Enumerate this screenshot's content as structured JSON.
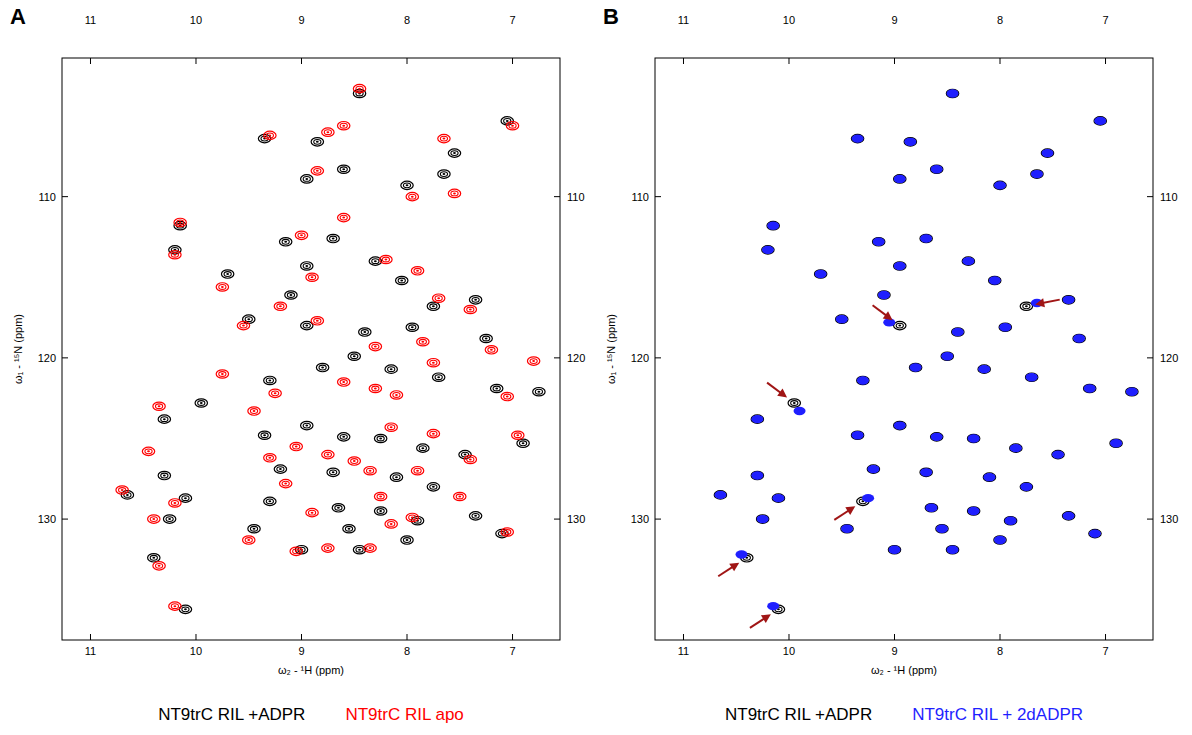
{
  "chart_data": [
    {
      "type": "scatter",
      "panel_label": "A",
      "x_label": "ω₂ - ¹H (ppm)",
      "y_label": "ω₁ - ¹⁵N (ppm)",
      "xlim": [
        11.27,
        6.55
      ],
      "ylim": [
        101.4,
        137.5
      ],
      "xticks": [
        11,
        10,
        9,
        8,
        7
      ],
      "yticks": [
        110,
        120,
        130
      ],
      "legend": "bottom",
      "grid": false,
      "series": [
        {
          "name": "NT9trC RIL +ADPR",
          "color": "#000000",
          "marker": "contour",
          "x": [
            9.35,
            8.85,
            8.45,
            7.55,
            7.05,
            8.95,
            8.6,
            8.0,
            7.65,
            10.15,
            10.2,
            9.15,
            8.7,
            8.3,
            9.7,
            8.95,
            8.05,
            7.75,
            7.35,
            9.1,
            9.5,
            8.95,
            8.4,
            7.95,
            7.25,
            9.95,
            9.3,
            8.8,
            8.5,
            8.15,
            7.7,
            7.15,
            6.75,
            10.3,
            9.35,
            8.95,
            8.6,
            8.25,
            7.85,
            7.45,
            6.9,
            10.3,
            9.2,
            8.7,
            8.1,
            7.75,
            10.65,
            10.1,
            9.3,
            8.65,
            8.25,
            7.9,
            7.35,
            10.25,
            9.45,
            8.55,
            8.0,
            10.4,
            9.0,
            8.45,
            10.1,
            7.1
          ],
          "y": [
            106.4,
            106.6,
            103.6,
            107.3,
            105.3,
            108.9,
            108.3,
            109.3,
            108.6,
            111.8,
            113.3,
            112.8,
            112.6,
            114.0,
            114.8,
            114.3,
            115.2,
            116.8,
            116.4,
            116.1,
            117.6,
            118.0,
            118.4,
            118.1,
            118.8,
            122.8,
            121.4,
            120.6,
            119.9,
            120.7,
            121.2,
            121.9,
            122.1,
            123.8,
            124.8,
            124.2,
            124.9,
            125.0,
            125.6,
            126.0,
            125.3,
            127.3,
            126.9,
            127.1,
            127.4,
            128.0,
            128.5,
            128.7,
            128.9,
            129.3,
            129.5,
            130.1,
            129.8,
            130.0,
            130.6,
            130.6,
            131.3,
            132.4,
            131.9,
            131.9,
            135.6,
            130.9
          ]
        },
        {
          "name": "NT9trC RIL apo",
          "color": "#ff0000",
          "marker": "contour",
          "x": [
            9.3,
            8.75,
            8.45,
            7.65,
            7.0,
            8.85,
            8.6,
            7.95,
            7.55,
            10.15,
            10.2,
            9.0,
            8.6,
            8.2,
            9.75,
            8.9,
            7.9,
            7.7,
            7.4,
            9.2,
            9.55,
            8.85,
            8.3,
            7.85,
            7.2,
            9.75,
            9.25,
            8.6,
            8.3,
            8.1,
            7.75,
            7.05,
            6.8,
            10.35,
            9.45,
            9.05,
            8.5,
            8.15,
            7.75,
            7.4,
            6.95,
            10.45,
            9.3,
            8.75,
            8.35,
            7.9,
            10.7,
            10.2,
            9.15,
            8.9,
            8.25,
            7.95,
            7.5,
            10.4,
            9.5,
            8.75,
            8.15,
            10.35,
            9.05,
            8.35,
            10.2,
            7.05
          ],
          "y": [
            106.2,
            106.0,
            103.3,
            106.4,
            105.6,
            108.4,
            105.6,
            110.0,
            109.8,
            111.6,
            113.6,
            112.4,
            111.3,
            113.9,
            115.6,
            115.0,
            114.6,
            116.3,
            117.0,
            116.8,
            118.0,
            117.7,
            119.3,
            119.0,
            119.5,
            121.0,
            122.2,
            121.5,
            121.9,
            122.3,
            120.3,
            122.4,
            120.2,
            123.0,
            123.3,
            125.5,
            126.4,
            124.3,
            124.7,
            126.3,
            124.8,
            125.8,
            126.2,
            126.0,
            127.0,
            127.0,
            128.2,
            129.0,
            127.8,
            129.6,
            128.6,
            129.9,
            128.6,
            130.0,
            131.3,
            131.8,
            130.3,
            132.9,
            132.0,
            131.8,
            135.4,
            130.8
          ]
        }
      ]
    },
    {
      "type": "scatter",
      "panel_label": "B",
      "x_label": "ω₂ - ¹H (ppm)",
      "y_label": "ω₁ - ¹⁵N (ppm)",
      "xlim": [
        11.27,
        6.55
      ],
      "ylim": [
        101.4,
        137.5
      ],
      "xticks": [
        11,
        10,
        9,
        8,
        7
      ],
      "yticks": [
        110,
        120,
        130
      ],
      "legend": "bottom",
      "grid": false,
      "series": [
        {
          "name": "NT9trC RIL +ADPR",
          "color": "#000000",
          "marker": "contour",
          "x": [
            9.35,
            8.85,
            8.45,
            7.55,
            7.05,
            8.95,
            8.6,
            8.0,
            7.65,
            10.15,
            10.2,
            9.15,
            8.7,
            8.3,
            9.7,
            8.95,
            8.05,
            7.75,
            7.35,
            9.1,
            9.5,
            8.95,
            8.4,
            7.95,
            7.25,
            9.95,
            9.3,
            8.8,
            8.5,
            8.15,
            7.7,
            7.15,
            6.75,
            10.3,
            9.35,
            8.95,
            8.6,
            8.25,
            7.85,
            7.45,
            6.9,
            10.3,
            9.2,
            8.7,
            8.1,
            7.75,
            10.65,
            10.1,
            9.3,
            8.65,
            8.25,
            7.9,
            7.35,
            10.25,
            9.45,
            8.55,
            8.0,
            10.4,
            9.0,
            8.45,
            10.1,
            7.1
          ],
          "y": [
            106.4,
            106.6,
            103.6,
            107.3,
            105.3,
            108.9,
            108.3,
            109.3,
            108.6,
            111.8,
            113.3,
            112.8,
            112.6,
            114.0,
            114.8,
            114.3,
            115.2,
            116.8,
            116.4,
            116.1,
            117.6,
            118.0,
            118.4,
            118.1,
            118.8,
            122.8,
            121.4,
            120.6,
            119.9,
            120.7,
            121.2,
            121.9,
            122.1,
            123.8,
            124.8,
            124.2,
            124.9,
            125.0,
            125.6,
            126.0,
            125.3,
            127.3,
            126.9,
            127.1,
            127.4,
            128.0,
            128.5,
            128.7,
            128.9,
            129.3,
            129.5,
            130.1,
            129.8,
            130.0,
            130.6,
            130.6,
            131.3,
            132.4,
            131.9,
            131.9,
            135.6,
            130.9
          ]
        },
        {
          "name": "NT9trC RIL + 2dADPR",
          "color": "#1f1fff",
          "marker": "filled",
          "x": [
            9.35,
            8.85,
            8.45,
            7.55,
            7.05,
            8.95,
            8.6,
            8.0,
            7.65,
            10.15,
            10.2,
            9.15,
            8.7,
            8.3,
            9.7,
            8.95,
            8.05,
            7.65,
            7.35,
            9.1,
            9.5,
            9.05,
            8.4,
            7.95,
            7.25,
            9.9,
            9.3,
            8.8,
            8.5,
            8.15,
            7.7,
            7.15,
            6.75,
            10.3,
            9.35,
            8.95,
            8.6,
            8.25,
            7.85,
            7.45,
            6.9,
            10.3,
            9.2,
            8.7,
            8.1,
            7.75,
            10.65,
            10.1,
            9.25,
            8.65,
            8.25,
            7.9,
            7.35,
            10.25,
            9.45,
            8.55,
            8.0,
            10.45,
            9.0,
            8.45,
            10.15,
            7.1
          ],
          "y": [
            106.4,
            106.6,
            103.6,
            107.3,
            105.3,
            108.9,
            108.3,
            109.3,
            108.6,
            111.8,
            113.3,
            112.8,
            112.6,
            114.0,
            114.8,
            114.3,
            115.2,
            116.6,
            116.4,
            116.1,
            117.6,
            117.8,
            118.4,
            118.1,
            118.8,
            123.3,
            121.4,
            120.6,
            119.9,
            120.7,
            121.2,
            121.9,
            122.1,
            123.8,
            124.8,
            124.2,
            124.9,
            125.0,
            125.6,
            126.0,
            125.3,
            127.3,
            126.9,
            127.1,
            127.4,
            128.0,
            128.5,
            128.7,
            128.7,
            129.3,
            129.5,
            130.1,
            129.8,
            130.0,
            130.6,
            130.6,
            131.3,
            132.2,
            131.9,
            131.9,
            135.4,
            130.9
          ]
        }
      ],
      "arrows": [
        {
          "x": 8.95,
          "y": 118.0
        },
        {
          "x": 7.75,
          "y": 116.8
        },
        {
          "x": 9.95,
          "y": 122.8
        },
        {
          "x": 9.3,
          "y": 128.9
        },
        {
          "x": 10.4,
          "y": 132.4
        },
        {
          "x": 10.1,
          "y": 135.6
        }
      ]
    }
  ]
}
